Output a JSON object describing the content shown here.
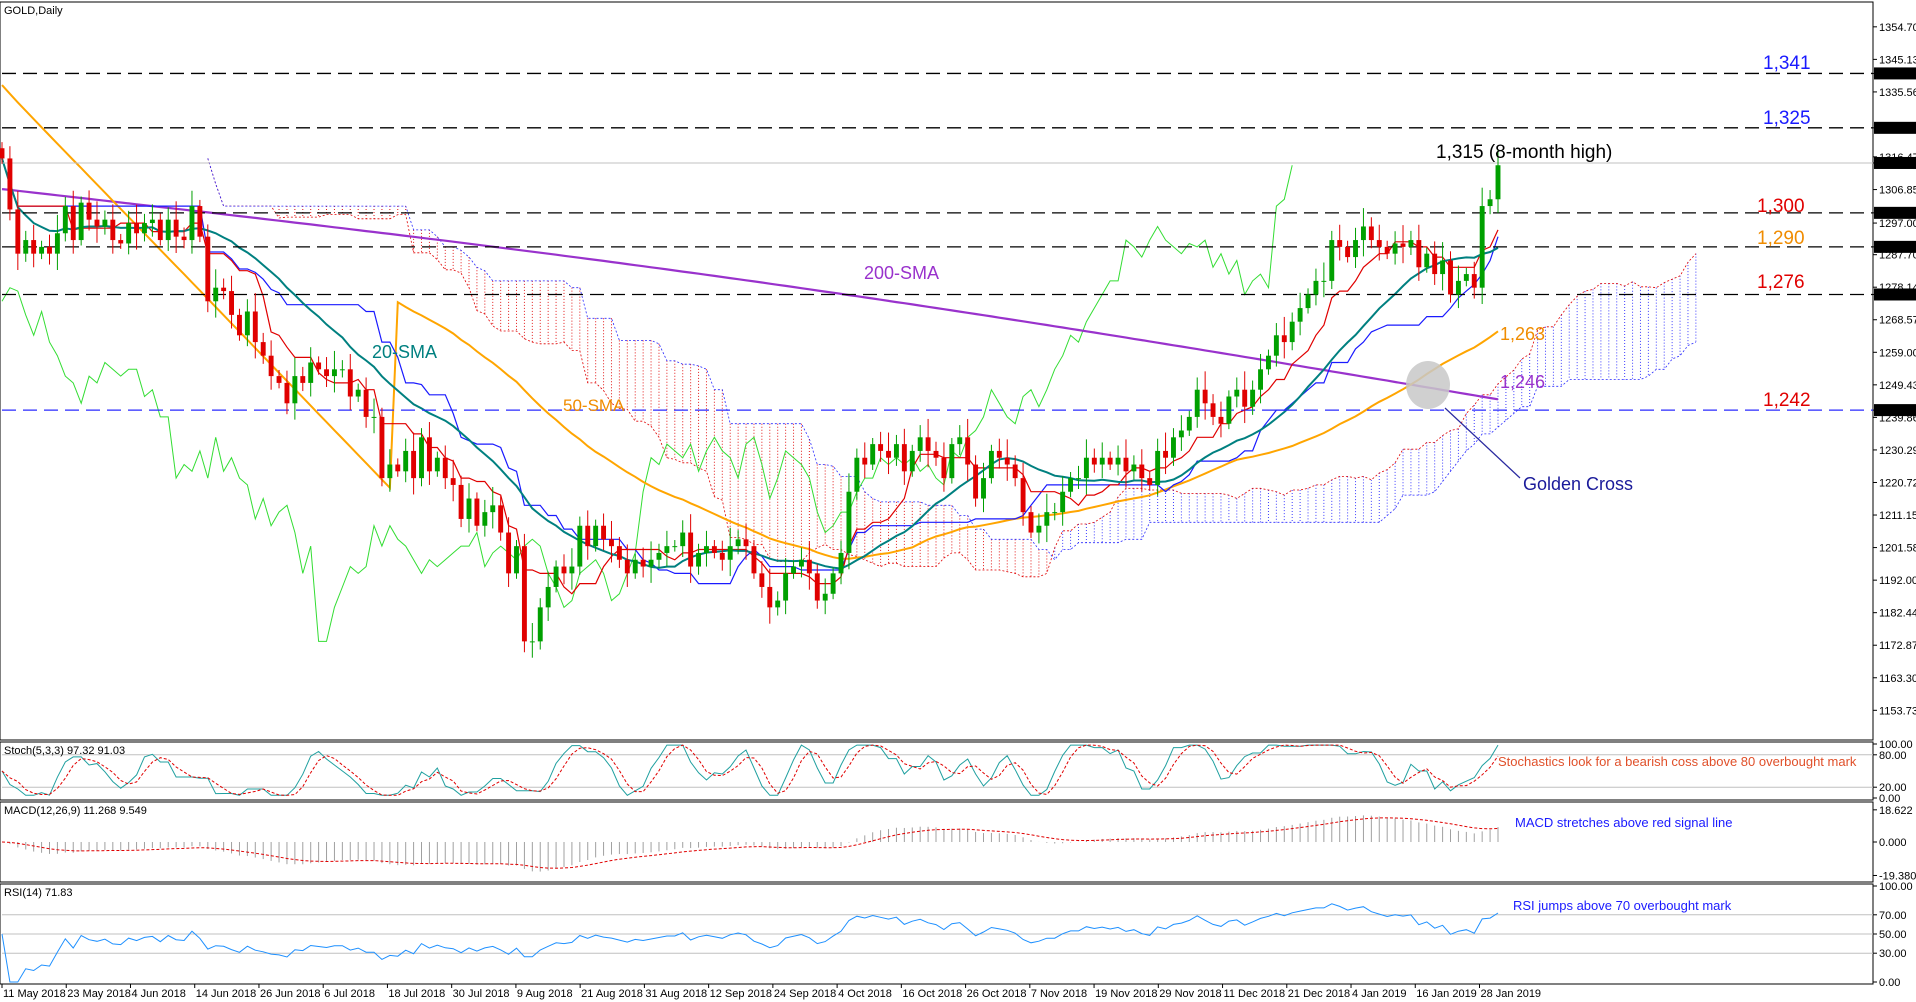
{
  "chart_data": {
    "type": "candlestick",
    "symbol": "GOLD,Daily",
    "main": {
      "ylim": [
        1145,
        1362
      ],
      "price_ticks": [
        "1354.70",
        "1345.13",
        "1341.00",
        "1335.56",
        "1325.00",
        "1316.47",
        "1314.67",
        "1306.85",
        "1300.00",
        "1297.00",
        "1290.00",
        "1287.70",
        "1278.14",
        "1276.00",
        "1268.57",
        "1259.00",
        "1249.43",
        "1242.00",
        "1239.86",
        "1230.29",
        "1220.72",
        "1211.15",
        "1201.58",
        "1192.00",
        "1182.44",
        "1172.87",
        "1163.30",
        "1153.73"
      ],
      "highlight_ticks": [
        "1341.00",
        "1325.00",
        "1314.67",
        "1300.00",
        "1290.00",
        "1276.00",
        "1242.00"
      ],
      "levels": [
        {
          "price": 1341,
          "label": "1,341",
          "color": "#1a1aff",
          "style": "dashed"
        },
        {
          "price": 1325,
          "label": "1,325",
          "color": "#1a1aff",
          "style": "dashed"
        },
        {
          "price": 1300,
          "label": "1,300",
          "color": "#e00000",
          "style": "dashed"
        },
        {
          "price": 1290,
          "label": "1,290",
          "color": "#f08c00",
          "style": "dashed"
        },
        {
          "price": 1276,
          "label": "1,276",
          "color": "#e00000",
          "style": "dashed"
        },
        {
          "price": 1242,
          "label": "1,242",
          "color": "#e00000",
          "style": "blue-dashed"
        }
      ],
      "annotations": {
        "high": "1,315 (8-month high)",
        "sma200": "200-SMA",
        "sma20": "20-SMA",
        "sma50": "50-SMA",
        "sma50_value": "1,263",
        "sma200_value": "1,246",
        "golden_cross": "Golden Cross"
      },
      "close_series": [
        1316,
        1301,
        1288,
        1292,
        1288,
        1290,
        1288,
        1294,
        1302,
        1292,
        1303,
        1298,
        1296,
        1298,
        1292,
        1291,
        1297,
        1294,
        1297,
        1298,
        1292,
        1298,
        1293,
        1292,
        1302,
        1293,
        1274,
        1278,
        1277,
        1270,
        1264,
        1271,
        1262,
        1258,
        1252,
        1250,
        1244,
        1252,
        1250,
        1256,
        1254,
        1252,
        1254,
        1254,
        1246,
        1248,
        1240,
        1240,
        1222,
        1226,
        1224,
        1230,
        1222,
        1234,
        1224,
        1228,
        1222,
        1220,
        1210,
        1216,
        1208,
        1212,
        1214,
        1206,
        1194,
        1202,
        1174,
        1174,
        1184,
        1190,
        1196,
        1194,
        1196,
        1208,
        1202,
        1208,
        1204,
        1202,
        1198,
        1194,
        1198,
        1196,
        1198,
        1200,
        1202,
        1202,
        1206,
        1196,
        1200,
        1202,
        1200,
        1198,
        1202,
        1204,
        1202,
        1194,
        1190,
        1184,
        1186,
        1194,
        1196,
        1198,
        1194,
        1186,
        1188,
        1194,
        1200,
        1218,
        1228,
        1226,
        1232,
        1230,
        1228,
        1232,
        1224,
        1230,
        1234,
        1230,
        1228,
        1222,
        1232,
        1234,
        1226,
        1216,
        1222,
        1230,
        1228,
        1226,
        1222,
        1212,
        1206,
        1208,
        1212,
        1212,
        1218,
        1222,
        1222,
        1228,
        1226,
        1228,
        1226,
        1228,
        1224,
        1226,
        1222,
        1220,
        1230,
        1228,
        1234,
        1236,
        1240,
        1248,
        1244,
        1240,
        1238,
        1246,
        1248,
        1243,
        1248,
        1254,
        1258,
        1264,
        1262,
        1268,
        1272,
        1276,
        1280,
        1280,
        1292,
        1290,
        1287,
        1292,
        1296,
        1292,
        1290,
        1288,
        1291,
        1290,
        1292,
        1284,
        1288,
        1282,
        1286,
        1276,
        1280,
        1282,
        1278,
        1302,
        1304,
        1314
      ]
    },
    "stoch": {
      "label": "Stoch(5,3,3) 97.32 91.03",
      "ylim": [
        0,
        100
      ],
      "ticks": [
        "100.00",
        "80.00",
        "20.00",
        "0.00"
      ],
      "levels": [
        80,
        20
      ],
      "note": "Stochastics look for a bearish coss above 80 overbought mark"
    },
    "macd": {
      "label": "MACD(12,26,9) 11.268 9.549",
      "ylim": [
        -22,
        22
      ],
      "ticks": [
        "18.622",
        "0.000",
        "-19.380"
      ],
      "note": "MACD stretches above red signal line"
    },
    "rsi": {
      "label": "RSI(14) 71.83",
      "ylim": [
        0,
        100
      ],
      "ticks": [
        "100.00",
        "70.00",
        "50.00",
        "30.00",
        "0.00"
      ],
      "levels": [
        70,
        50,
        30
      ],
      "value": 71.83,
      "note": "RSI jumps above 70 overbought mark"
    },
    "x_labels": [
      "11 May 2018",
      "23 May 2018",
      "4 Jun 2018",
      "14 Jun 2018",
      "26 Jun 2018",
      "6 Jul 2018",
      "18 Jul 2018",
      "30 Jul 2018",
      "9 Aug 2018",
      "21 Aug 2018",
      "31 Aug 2018",
      "12 Sep 2018",
      "24 Sep 2018",
      "4 Oct 2018",
      "16 Oct 2018",
      "26 Oct 2018",
      "7 Nov 2018",
      "19 Nov 2018",
      "29 Nov 2018",
      "11 Dec 2018",
      "21 Dec 2018",
      "4 Jan 2019",
      "16 Jan 2019",
      "28 Jan 2019"
    ],
    "colors": {
      "up": "#00a000",
      "down": "#e00000",
      "sma20": "#008080",
      "sma50": "#ffa500",
      "sma200": "#9932cc",
      "lagging": "#33dd33",
      "tenkan": "#e00000",
      "kijun": "#1a1aff"
    }
  }
}
